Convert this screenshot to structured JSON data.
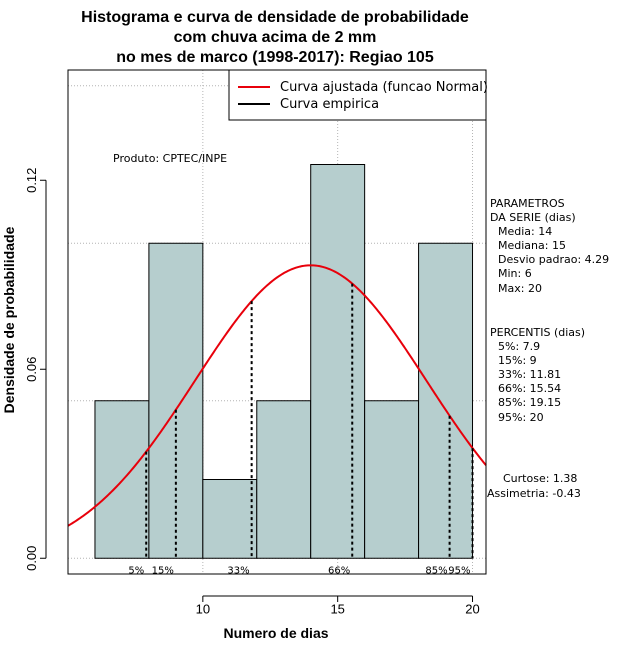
{
  "chart_data": {
    "type": "bar",
    "title_lines": [
      "Histograma e curva de densidade de probabilidade",
      "com chuva acima de 2 mm",
      "no mes de marco (1998-2017): Regiao 105"
    ],
    "xlabel": "Numero de dias",
    "ylabel": "Densidade de probabilidade",
    "xlim": [
      5,
      20.5
    ],
    "ylim": [
      -0.005,
      0.155
    ],
    "x_ticks": [
      10,
      15,
      20
    ],
    "y_ticks": [
      0.0,
      0.06,
      0.12
    ],
    "y_tick_labels": [
      "0.00",
      "0.06",
      "0.12"
    ],
    "bins": [
      {
        "from": 6,
        "to": 8,
        "density": 0.05
      },
      {
        "from": 8,
        "to": 10,
        "density": 0.1
      },
      {
        "from": 10,
        "to": 12,
        "density": 0.025
      },
      {
        "from": 12,
        "to": 14,
        "density": 0.05
      },
      {
        "from": 14,
        "to": 16,
        "density": 0.125
      },
      {
        "from": 16,
        "to": 18,
        "density": 0.05
      },
      {
        "from": 18,
        "to": 20,
        "density": 0.1
      }
    ],
    "normal_curve": {
      "mean": 14,
      "sd": 4.29,
      "color": "#e8000b",
      "name": "Curva ajustada (funcao Normal)"
    },
    "empirical_curve": {
      "color": "#000000",
      "name": "Curva empirica"
    },
    "percentile_markers": [
      {
        "label": "5%",
        "value": 7.9
      },
      {
        "label": "15%",
        "value": 9
      },
      {
        "label": "33%",
        "value": 11.81
      },
      {
        "label": "66%",
        "value": 15.54
      },
      {
        "label": "85%",
        "value": 19.15
      },
      {
        "label": "95%",
        "value": 20
      }
    ],
    "grid": true,
    "grid_y": [
      0,
      0.05,
      0.1,
      0.15
    ],
    "legend_position": "top-right",
    "bar_color": "#b6cece"
  },
  "annotations": {
    "produto": "Produto: CPTEC/INPE",
    "parametros_title_1": "PARAMETROS",
    "parametros_title_2": "DA SERIE (dias)",
    "media": "Media: 14",
    "mediana": "Mediana: 15",
    "desvio": "Desvio padrao: 4.29",
    "min": "Min: 6",
    "max": "Max: 20",
    "percentis_title": "PERCENTIS (dias)",
    "p5": "5%: 7.9",
    "p15": "15%: 9",
    "p33": "33%: 11.81",
    "p66": "66%: 15.54",
    "p85": "85%: 19.15",
    "p95": "95%: 20",
    "curtose": "Curtose: 1.38",
    "assimetria": "Assimetria: -0.43"
  }
}
